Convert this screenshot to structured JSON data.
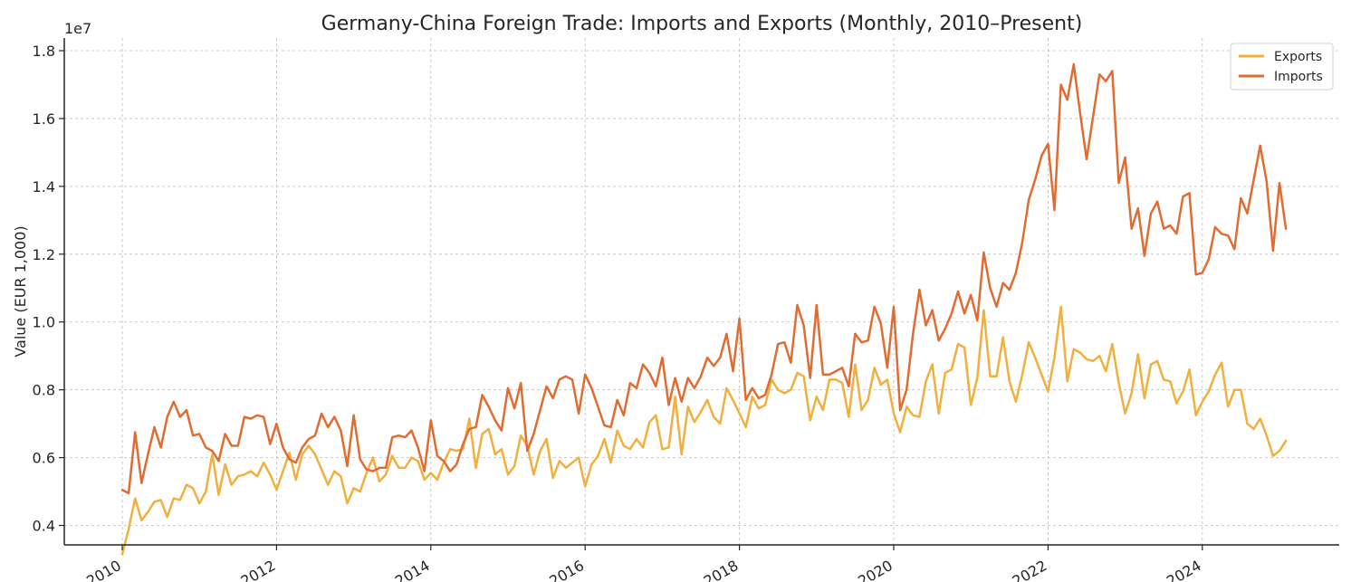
{
  "chart_data": {
    "type": "line",
    "title": "Germany-China Foreign Trade: Imports and Exports (Monthly, 2010–Present)",
    "xlabel": "",
    "ylabel": "Value (EUR 1,000)",
    "y_offset_label": "1e7",
    "y_scale": 10000000,
    "xlim": [
      2010.0,
      2025.0
    ],
    "ylim": [
      3000000,
      18000000
    ],
    "x_ticks": [
      2010,
      2012,
      2014,
      2016,
      2018,
      2020,
      2022,
      2024
    ],
    "x_tick_labels": [
      "2010",
      "2012",
      "2014",
      "2016",
      "2018",
      "2020",
      "2022",
      "2024"
    ],
    "y_ticks": [
      4000000,
      6000000,
      8000000,
      10000000,
      12000000,
      14000000,
      16000000,
      18000000
    ],
    "y_tick_labels": [
      "0.4",
      "0.6",
      "0.8",
      "1.0",
      "1.2",
      "1.4",
      "1.6",
      "1.8"
    ],
    "grid": true,
    "legend_position": "top-right",
    "series": [
      {
        "name": "Exports",
        "color": "#f1b03e",
        "start": "2010-01",
        "values": [
          3150000,
          3900000,
          4800000,
          4150000,
          4400000,
          4700000,
          4750000,
          4250000,
          4800000,
          4750000,
          5200000,
          5100000,
          4650000,
          5000000,
          6100000,
          4900000,
          5800000,
          5200000,
          5450000,
          5500000,
          5600000,
          5450000,
          5850000,
          5500000,
          5050000,
          5600000,
          6150000,
          5350000,
          6100000,
          6350000,
          6100000,
          5650000,
          5200000,
          5600000,
          5450000,
          4650000,
          5100000,
          5000000,
          5550000,
          6000000,
          5300000,
          5500000,
          6050000,
          5700000,
          5700000,
          6000000,
          5900000,
          5350000,
          5550000,
          5350000,
          5850000,
          6250000,
          6200000,
          6250000,
          7150000,
          5700000,
          6700000,
          6850000,
          6100000,
          6250000,
          5500000,
          5750000,
          6650000,
          6350000,
          5500000,
          6200000,
          6550000,
          5400000,
          5900000,
          5700000,
          5850000,
          6000000,
          5150000,
          5800000,
          6050000,
          6550000,
          5850000,
          6800000,
          6350000,
          6250000,
          6550000,
          6300000,
          7050000,
          7250000,
          6250000,
          6300000,
          7800000,
          6100000,
          7500000,
          7050000,
          7350000,
          7700000,
          7200000,
          7000000,
          8050000,
          7700000,
          7300000,
          6900000,
          7800000,
          7450000,
          7550000,
          8300000,
          8000000,
          7900000,
          8000000,
          8500000,
          8400000,
          7100000,
          7800000,
          7400000,
          8300000,
          8300000,
          8200000,
          7200000,
          8750000,
          7400000,
          7700000,
          8650000,
          8150000,
          8300000,
          7300000,
          6750000,
          7500000,
          7250000,
          7200000,
          8250000,
          8750000,
          7300000,
          8500000,
          8600000,
          9350000,
          9250000,
          7550000,
          8350000,
          10350000,
          8400000,
          8400000,
          9550000,
          8250000,
          7650000,
          8450000,
          9400000,
          8950000,
          8450000,
          7950000,
          8950000,
          10450000,
          8250000,
          9200000,
          9100000,
          8900000,
          8850000,
          9000000,
          8550000,
          9350000,
          8200000,
          7300000,
          7900000,
          9050000,
          7750000,
          8750000,
          8850000,
          8300000,
          8250000,
          7600000,
          7950000,
          8600000,
          7250000,
          7650000,
          7950000,
          8450000,
          8800000,
          7500000,
          8000000,
          8000000,
          7000000,
          6850000,
          7150000,
          6650000,
          6050000,
          6200000,
          6500000
        ]
      },
      {
        "name": "Imports",
        "color": "#e06c32",
        "start": "2010-01",
        "values": [
          5050000,
          4950000,
          6750000,
          5250000,
          6100000,
          6900000,
          6300000,
          7200000,
          7650000,
          7200000,
          7400000,
          6650000,
          6700000,
          6300000,
          6200000,
          5900000,
          6700000,
          6350000,
          6350000,
          7200000,
          7150000,
          7250000,
          7200000,
          6400000,
          7000000,
          6300000,
          5950000,
          5850000,
          6300000,
          6550000,
          6650000,
          7300000,
          6900000,
          7200000,
          6800000,
          5750000,
          7250000,
          5950000,
          5650000,
          5600000,
          5700000,
          5700000,
          6600000,
          6650000,
          6600000,
          6800000,
          6300000,
          5600000,
          7100000,
          6050000,
          5900000,
          5600000,
          5800000,
          6400000,
          6850000,
          6900000,
          7850000,
          7500000,
          7100000,
          6800000,
          8050000,
          7450000,
          8200000,
          6200000,
          6700000,
          7400000,
          8100000,
          7750000,
          8300000,
          8400000,
          8300000,
          7300000,
          8450000,
          8050000,
          7500000,
          6950000,
          6900000,
          7700000,
          7250000,
          8200000,
          8050000,
          8750000,
          8500000,
          8100000,
          8950000,
          7550000,
          8350000,
          7650000,
          8350000,
          8050000,
          8400000,
          8950000,
          8700000,
          8950000,
          9650000,
          8550000,
          10100000,
          7700000,
          8050000,
          7750000,
          7850000,
          8450000,
          9350000,
          9400000,
          8800000,
          10500000,
          9900000,
          8350000,
          10500000,
          8450000,
          8450000,
          8550000,
          8650000,
          8100000,
          9650000,
          9400000,
          9450000,
          10450000,
          9950000,
          8650000,
          10450000,
          7400000,
          8000000,
          9650000,
          10950000,
          9900000,
          10350000,
          9450000,
          9800000,
          10250000,
          10900000,
          10250000,
          10800000,
          10050000,
          12050000,
          11000000,
          10450000,
          11150000,
          10950000,
          11450000,
          12350000,
          13600000,
          14200000,
          14900000,
          15250000,
          13300000,
          17000000,
          16550000,
          17600000,
          16150000,
          14800000,
          16050000,
          17300000,
          17100000,
          17400000,
          14100000,
          14850000,
          12750000,
          13350000,
          11950000,
          13200000,
          13550000,
          12750000,
          12850000,
          12600000,
          13700000,
          13800000,
          11400000,
          11450000,
          11850000,
          12800000,
          12600000,
          12550000,
          12150000,
          13650000,
          13200000,
          14200000,
          15200000,
          14150000,
          12100000,
          14100000,
          12750000
        ]
      }
    ]
  }
}
